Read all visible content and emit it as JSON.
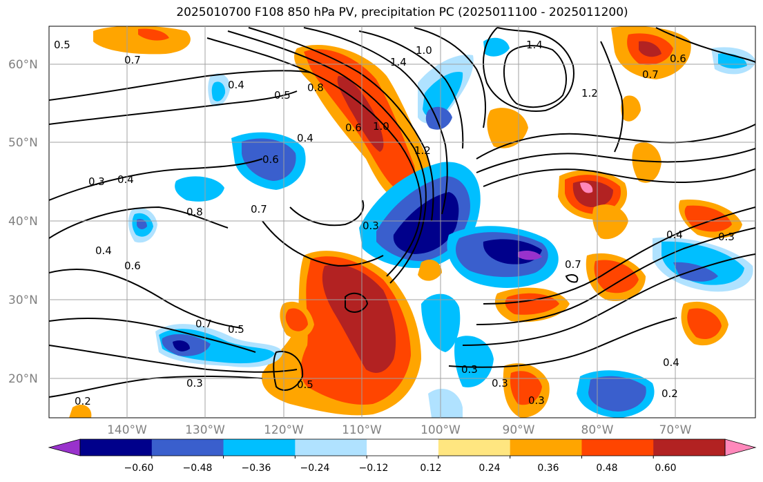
{
  "title": "2025010700 F108 850 hPa PV, precipitation PC (2025011100 - 2025011200)",
  "lat_labels": [
    "60°N",
    "50°N",
    "40°N",
    "30°N",
    "20°N"
  ],
  "lon_labels": [
    "140°W",
    "130°W",
    "120°W",
    "110°W",
    "100°W",
    "90°W",
    "80°W",
    "70°W"
  ],
  "colorbar": {
    "ticks": [
      "−0.60",
      "−0.48",
      "−0.36",
      "−0.24",
      "−0.12",
      "0.12",
      "0.24",
      "0.36",
      "0.48",
      "0.60"
    ],
    "colors": [
      "#9932cc",
      "#00008b",
      "#3a5fcd",
      "#00bfff",
      "#b0e2ff",
      "#ffffff",
      "#ffe680",
      "#ffa500",
      "#ff4500",
      "#b22222",
      "#ff88bb"
    ]
  },
  "contour_labels": [
    {
      "id": "c1",
      "text": "0.5"
    },
    {
      "id": "c2",
      "text": "0.7"
    },
    {
      "id": "c3",
      "text": "0.4"
    },
    {
      "id": "c4",
      "text": "0.5"
    },
    {
      "id": "c5",
      "text": "0.8"
    },
    {
      "id": "c6",
      "text": "1.0"
    },
    {
      "id": "c7",
      "text": "1.4"
    },
    {
      "id": "c8",
      "text": "1.4"
    },
    {
      "id": "c9",
      "text": "1.2"
    },
    {
      "id": "c10",
      "text": "0.6"
    },
    {
      "id": "c11",
      "text": "0.7"
    },
    {
      "id": "c12",
      "text": "0.6"
    },
    {
      "id": "c13",
      "text": "1.0"
    },
    {
      "id": "c14",
      "text": "1.2"
    },
    {
      "id": "c15",
      "text": "0.4"
    },
    {
      "id": "c16",
      "text": "0.6"
    },
    {
      "id": "c17",
      "text": "0.3"
    },
    {
      "id": "c18",
      "text": "0.4"
    },
    {
      "id": "c19",
      "text": "0.8"
    },
    {
      "id": "c20",
      "text": "0.7"
    },
    {
      "id": "c21",
      "text": "0.3"
    },
    {
      "id": "c22",
      "text": "0.4"
    },
    {
      "id": "c23",
      "text": "0.6"
    },
    {
      "id": "c24",
      "text": "0.7"
    },
    {
      "id": "c25",
      "text": "0.5"
    },
    {
      "id": "c26",
      "text": "0.3"
    },
    {
      "id": "c27",
      "text": "0.5"
    },
    {
      "id": "c28",
      "text": "0.2"
    },
    {
      "id": "c29",
      "text": "0.7"
    },
    {
      "id": "c30",
      "text": "0.4"
    },
    {
      "id": "c31",
      "text": "0.3"
    },
    {
      "id": "c32",
      "text": "0.3"
    },
    {
      "id": "c33",
      "text": "0.3"
    },
    {
      "id": "c34",
      "text": "0.4"
    },
    {
      "id": "c35",
      "text": "0.2"
    },
    {
      "id": "c36",
      "text": "0.3"
    }
  ]
}
